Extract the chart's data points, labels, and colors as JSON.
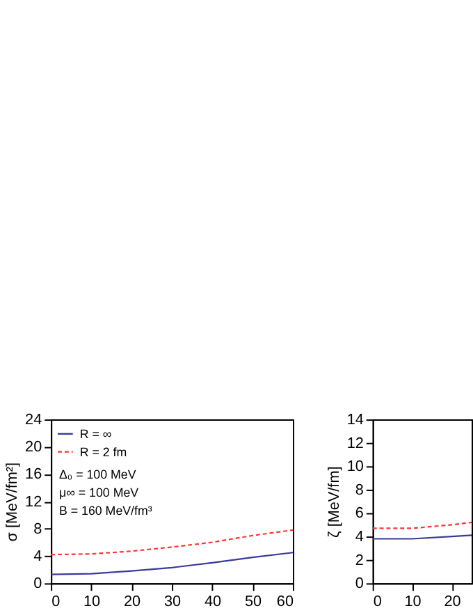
{
  "chart_data": [
    {
      "type": "line",
      "xlabel": null,
      "ylabel": "σ [MeV/fm²]",
      "x": [
        0,
        10,
        20,
        30,
        40,
        50,
        60
      ],
      "xlim": [
        0,
        60
      ],
      "xticks": [
        0,
        10,
        20,
        30,
        40,
        50,
        60
      ],
      "ylim": [
        0,
        24
      ],
      "yticks": [
        0,
        4,
        8,
        12,
        16,
        20,
        24
      ],
      "grid": false,
      "legend": "top left",
      "series": [
        {
          "name": "R = ∞",
          "color": "#3a3a9a",
          "line_style": "solid",
          "values": [
            1.3,
            1.4,
            1.8,
            2.3,
            3.0,
            3.8,
            4.5
          ]
        },
        {
          "name": "R = 2 fm",
          "color": "#ff3333",
          "line_style": "dashed",
          "values": [
            4.2,
            4.3,
            4.7,
            5.3,
            6.0,
            7.0,
            7.8
          ]
        }
      ],
      "annotations": [
        "Δ₀ = 100 MeV",
        "μ∞ = 100 MeV",
        "B = 160 MeV/fm³"
      ]
    },
    {
      "type": "line",
      "ylabel": "ζ [MeV/fm]",
      "x": [
        0,
        10,
        20,
        25
      ],
      "xlim": [
        0,
        25
      ],
      "xticks": [
        0,
        10,
        20
      ],
      "ylim": [
        0,
        14
      ],
      "yticks": [
        0,
        2,
        4,
        6,
        8,
        10,
        12,
        14
      ],
      "grid": false,
      "legend": false,
      "series": [
        {
          "color": "#3a3a9a",
          "line_style": "solid",
          "values": [
            3.8,
            3.8,
            4.0,
            4.1
          ]
        },
        {
          "color": "#ff3333",
          "line_style": "dashed",
          "values": [
            4.7,
            4.7,
            5.0,
            5.2
          ]
        }
      ]
    }
  ]
}
